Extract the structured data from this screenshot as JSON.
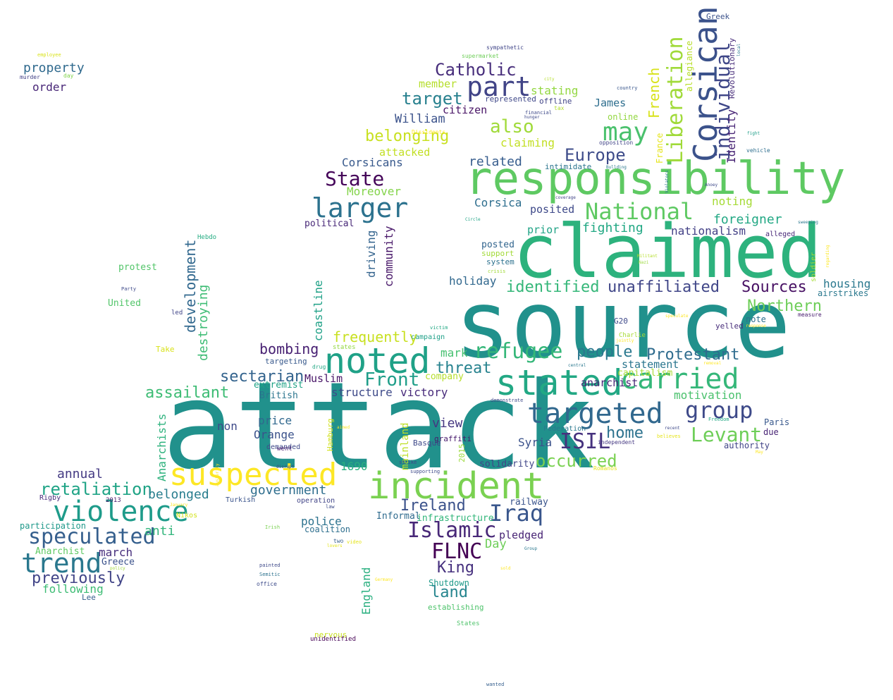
{
  "words": [
    {
      "text": "attack",
      "color": "#21918c"
    },
    {
      "text": "source",
      "color": "#21918c"
    },
    {
      "text": "claimed",
      "color": "#2db27d"
    },
    {
      "text": "responsibility",
      "color": "#5ec962"
    },
    {
      "text": "incident",
      "color": "#7ad151"
    },
    {
      "text": "noted",
      "color": "#1fa187"
    },
    {
      "text": "stated",
      "color": "#22a884"
    },
    {
      "text": "suspected",
      "color": "#fde725"
    },
    {
      "text": "Corsican",
      "color": "#3b528b"
    },
    {
      "text": "targeted",
      "color": "#31688e"
    },
    {
      "text": "carried",
      "color": "#35b779"
    },
    {
      "text": "violence",
      "color": "#1e9b8a"
    },
    {
      "text": "trend",
      "color": "#2a788e"
    },
    {
      "text": "larger",
      "color": "#2c728e"
    },
    {
      "text": "part",
      "color": "#414487"
    },
    {
      "text": "refugee",
      "color": "#35b779"
    },
    {
      "text": "group",
      "color": "#3e4a89"
    },
    {
      "text": "Islamic",
      "color": "#482878"
    },
    {
      "text": "FLNC",
      "color": "#440154"
    },
    {
      "text": "ISIL",
      "color": "#46327e"
    },
    {
      "text": "Iraq",
      "color": "#39568c"
    },
    {
      "text": "National",
      "color": "#5ec962"
    },
    {
      "text": "may",
      "color": "#4ac16d"
    },
    {
      "text": "Liberation",
      "color": "#a0da39"
    },
    {
      "text": "individual",
      "color": "#3f4788"
    },
    {
      "text": "speculated",
      "color": "#355f8d"
    },
    {
      "text": "retaliation",
      "color": "#20a486"
    },
    {
      "text": "Levant",
      "color": "#6ece58"
    },
    {
      "text": "Front",
      "color": "#1f9e89"
    },
    {
      "text": "Sources",
      "color": "#471063"
    },
    {
      "text": "Northern",
      "color": "#6ece58"
    },
    {
      "text": "Protestant",
      "color": "#2f6c8e"
    },
    {
      "text": "sectarian",
      "color": "#33638d"
    },
    {
      "text": "State",
      "color": "#450559"
    },
    {
      "text": "also",
      "color": "#a0da39"
    },
    {
      "text": "belonging",
      "color": "#c8e020"
    },
    {
      "text": "Catholic",
      "color": "#472d7b"
    },
    {
      "text": "target",
      "color": "#27808e"
    },
    {
      "text": "Europe",
      "color": "#3e4c8a"
    },
    {
      "text": "occurred",
      "color": "#7ad151"
    },
    {
      "text": "home",
      "color": "#2c728e"
    },
    {
      "text": "Ireland",
      "color": "#3b528b"
    },
    {
      "text": "land",
      "color": "#25858e"
    },
    {
      "text": "King",
      "color": "#46307e"
    },
    {
      "text": "people",
      "color": "#2a788e"
    },
    {
      "text": "threat",
      "color": "#26828e"
    },
    {
      "text": "identified",
      "color": "#35b779"
    },
    {
      "text": "unaffiliated",
      "color": "#404688"
    },
    {
      "text": "assailant",
      "color": "#3dbc74"
    },
    {
      "text": "frequently",
      "color": "#c8e020"
    },
    {
      "text": "bombing",
      "color": "#482173"
    },
    {
      "text": "government",
      "color": "#2e6e8e"
    },
    {
      "text": "belonged",
      "color": "#287d8e"
    },
    {
      "text": "previously",
      "color": "#414487"
    },
    {
      "text": "following",
      "color": "#3dbc74"
    },
    {
      "text": "march",
      "color": "#472f7d"
    },
    {
      "text": "annual",
      "color": "#443a83"
    },
    {
      "text": "anti",
      "color": "#31b57b"
    },
    {
      "text": "development",
      "color": "#31688e"
    },
    {
      "text": "destroying",
      "color": "#3dbc74"
    },
    {
      "text": "Anarchists",
      "color": "#2db27d"
    },
    {
      "text": "coastline",
      "color": "#1fa187"
    },
    {
      "text": "driving",
      "color": "#33638d"
    },
    {
      "text": "community",
      "color": "#481769"
    },
    {
      "text": "mainland",
      "color": "#bddf26"
    },
    {
      "text": "England",
      "color": "#29af7f"
    },
    {
      "text": "Moreover",
      "color": "#84d44b"
    },
    {
      "text": "Corsicans",
      "color": "#38598c"
    },
    {
      "text": "attacked",
      "color": "#c2df23"
    },
    {
      "text": "William",
      "color": "#3b528b"
    },
    {
      "text": "citizen",
      "color": "#471365"
    },
    {
      "text": "member",
      "color": "#b5de2b"
    },
    {
      "text": "related",
      "color": "#365c8d"
    },
    {
      "text": "claiming",
      "color": "#c2df23"
    },
    {
      "text": "stating",
      "color": "#93d741"
    },
    {
      "text": "James",
      "color": "#2e6e8e"
    },
    {
      "text": "French",
      "color": "#d8e219"
    },
    {
      "text": "Identity",
      "color": "#482475"
    },
    {
      "text": "Corsica",
      "color": "#2e6e8e"
    },
    {
      "text": "posited",
      "color": "#3e4989"
    },
    {
      "text": "noting",
      "color": "#a5db36"
    },
    {
      "text": "fighting",
      "color": "#22a884"
    },
    {
      "text": "foreigner",
      "color": "#22a884"
    },
    {
      "text": "nationalism",
      "color": "#424086"
    },
    {
      "text": "prior",
      "color": "#20a386"
    },
    {
      "text": "holiday",
      "color": "#31688e"
    },
    {
      "text": "housing",
      "color": "#2a788e"
    },
    {
      "text": "view",
      "color": "#453781"
    },
    {
      "text": "victory",
      "color": "#472a7a"
    },
    {
      "text": "structure",
      "color": "#3e4a89"
    },
    {
      "text": "Muslim",
      "color": "#481467"
    },
    {
      "text": "extremist",
      "color": "#20a386"
    },
    {
      "text": "British",
      "color": "#2b758e"
    },
    {
      "text": "price",
      "color": "#31688e"
    },
    {
      "text": "Orange",
      "color": "#3b528b"
    },
    {
      "text": "non",
      "color": "#3e4a89"
    },
    {
      "text": "mark",
      "color": "#46c06f"
    },
    {
      "text": "company",
      "color": "#b5de2b"
    },
    {
      "text": "motivation",
      "color": "#4ac16d"
    },
    {
      "text": "statement",
      "color": "#2a768e"
    },
    {
      "text": "anarchist",
      "color": "#482677"
    },
    {
      "text": "capitalism",
      "color": "#a8db34"
    },
    {
      "text": "Syria",
      "color": "#3b528b"
    },
    {
      "text": "solidarity",
      "color": "#404588"
    },
    {
      "text": "Day",
      "color": "#6ece58"
    },
    {
      "text": "pledged",
      "color": "#482475"
    },
    {
      "text": "1690",
      "color": "#29af7f"
    },
    {
      "text": "police",
      "color": "#2c728e"
    },
    {
      "text": "coalition",
      "color": "#2e6f8e"
    },
    {
      "text": "Informal",
      "color": "#2f6b8e"
    },
    {
      "text": "infrastructure",
      "color": "#32b67a"
    },
    {
      "text": "railway",
      "color": "#3a548c"
    },
    {
      "text": "Shutdown",
      "color": "#1f9a8a"
    },
    {
      "text": "establishing",
      "color": "#4ec36b"
    },
    {
      "text": "participation",
      "color": "#1f998a"
    },
    {
      "text": "Anarchist",
      "color": "#5ec962"
    },
    {
      "text": "Greece",
      "color": "#3b528b"
    },
    {
      "text": "Lee",
      "color": "#355f8d"
    },
    {
      "text": "property",
      "color": "#306a8e"
    },
    {
      "text": "order",
      "color": "#482677"
    },
    {
      "text": "protest",
      "color": "#52c569"
    },
    {
      "text": "United",
      "color": "#52c569"
    },
    {
      "text": "political",
      "color": "#482878"
    },
    {
      "text": "posted",
      "color": "#32658e"
    },
    {
      "text": "support",
      "color": "#a2da37"
    },
    {
      "text": "system",
      "color": "#2c718e"
    },
    {
      "text": "Paris",
      "color": "#38588c"
    },
    {
      "text": "due",
      "color": "#482475"
    },
    {
      "text": "authority",
      "color": "#414487"
    },
    {
      "text": "note",
      "color": "#2d708e"
    },
    {
      "text": "yelled",
      "color": "#472c7a"
    },
    {
      "text": "airstrikes",
      "color": "#2a788e"
    },
    {
      "text": "Revolutionary",
      "color": "#472c7a"
    },
    {
      "text": "allegiance",
      "color": "#b8de29"
    },
    {
      "text": "France",
      "color": "#e5e419"
    },
    {
      "text": "online",
      "color": "#93d741"
    },
    {
      "text": "intimidate",
      "color": "#2b748e"
    },
    {
      "text": "offline",
      "color": "#414487"
    },
    {
      "text": "represented",
      "color": "#3f4889"
    },
    {
      "text": "sympathetic",
      "color": "#404588"
    },
    {
      "text": "Greek",
      "color": "#3b528b"
    },
    {
      "text": "Hamburg",
      "color": "#d0e11c"
    },
    {
      "text": "2015",
      "color": "#9bd93c"
    },
    {
      "text": "Basque",
      "color": "#3e4989"
    },
    {
      "text": "demanded",
      "color": "#3e4989"
    },
    {
      "text": "graffiti",
      "color": "#481a6c"
    },
    {
      "text": "Turkish",
      "color": "#3a548c"
    },
    {
      "text": "operation",
      "color": "#414487"
    },
    {
      "text": "Nikos",
      "color": "#d2e21b"
    },
    {
      "text": "Rigby",
      "color": "#472a7a"
    },
    {
      "text": "2013",
      "color": "#481b6d"
    },
    {
      "text": "nervous",
      "color": "#c8e020"
    },
    {
      "text": "unidentified",
      "color": "#440154"
    },
    {
      "text": "campaign",
      "color": "#1fa088"
    },
    {
      "text": "drug",
      "color": "#22a884"
    },
    {
      "text": "targeting",
      "color": "#38598c"
    },
    {
      "text": "went",
      "color": "#481f70"
    },
    {
      "text": "Take",
      "color": "#d8e219"
    },
    {
      "text": "Hebdo",
      "color": "#25ac82"
    },
    {
      "text": "led",
      "color": "#404588"
    },
    {
      "text": "Party",
      "color": "#3e4989"
    },
    {
      "text": "G20",
      "color": "#3e4989"
    },
    {
      "text": "Charlie",
      "color": "#a8db34"
    },
    {
      "text": "Federation",
      "color": "#2a788e"
    },
    {
      "text": "independent",
      "color": "#453882"
    },
    {
      "text": "soldier",
      "color": "#a5db36"
    },
    {
      "text": "alleged",
      "color": "#482878"
    },
    {
      "text": "measure",
      "color": "#481d6f"
    },
    {
      "text": "vehicle",
      "color": "#2e6e8e"
    },
    {
      "text": "opposition",
      "color": "#414487"
    },
    {
      "text": "financial",
      "color": "#3e4989"
    },
    {
      "text": "country",
      "color": "#39568c"
    },
    {
      "text": "tax",
      "color": "#b2dd2d"
    },
    {
      "text": "supermarket",
      "color": "#6ece58"
    },
    {
      "text": "employee",
      "color": "#d8e219"
    },
    {
      "text": "day",
      "color": "#82d34c"
    },
    {
      "text": "murder",
      "color": "#424186"
    },
    {
      "text": "states",
      "color": "#93d741"
    },
    {
      "text": "States",
      "color": "#4ec36b"
    },
    {
      "text": "painted",
      "color": "#3e4989"
    },
    {
      "text": "Semitic",
      "color": "#2c728e"
    },
    {
      "text": "office",
      "color": "#3e4c8a"
    },
    {
      "text": "strike",
      "color": "#404688"
    },
    {
      "text": "supporting",
      "color": "#3e4a89"
    },
    {
      "text": "two",
      "color": "#355f8d"
    },
    {
      "text": "lovers",
      "color": "#e2e418"
    },
    {
      "text": "video",
      "color": "#e5e419"
    },
    {
      "text": "law",
      "color": "#3e4c8a"
    },
    {
      "text": "victim",
      "color": "#22a884"
    },
    {
      "text": "crisis",
      "color": "#a0da39"
    },
    {
      "text": "Irish",
      "color": "#7ad151"
    },
    {
      "text": "wanted",
      "color": "#355f8d"
    },
    {
      "text": "Dissidents",
      "color": "#fde725"
    },
    {
      "text": "Circle",
      "color": "#20a486"
    },
    {
      "text": "Nazi",
      "color": "#9bd93c"
    },
    {
      "text": "Militant",
      "color": "#b5de2b"
    },
    {
      "text": "speculate",
      "color": "#fde725"
    },
    {
      "text": "Romanos",
      "color": "#e5e419"
    },
    {
      "text": "believes",
      "color": "#e5e419"
    },
    {
      "text": "Freedom",
      "color": "#22a884"
    },
    {
      "text": "removal",
      "color": "#fde725"
    },
    {
      "text": "recent",
      "color": "#3e4989"
    },
    {
      "text": "May",
      "color": "#fde725"
    },
    {
      "text": "response",
      "color": "#fde725"
    },
    {
      "text": "fight",
      "color": "#1f9e89"
    },
    {
      "text": "demonstrate",
      "color": "#3e4989"
    },
    {
      "text": "jointly",
      "color": "#fde725"
    },
    {
      "text": "central",
      "color": "#2a788e"
    },
    {
      "text": "January",
      "color": "#fde725"
    },
    {
      "text": "austerity",
      "color": "#fde725"
    },
    {
      "text": "Group",
      "color": "#2a788e"
    },
    {
      "text": "coverage",
      "color": "#414487"
    },
    {
      "text": "Anoey",
      "color": "#3e4989"
    },
    {
      "text": "hunger",
      "color": "#3e4989"
    },
    {
      "text": "local",
      "color": "#2a788e"
    },
    {
      "text": "city",
      "color": "#b5de2b"
    },
    {
      "text": "disrupt",
      "color": "#414487"
    },
    {
      "text": "sold",
      "color": "#fde725"
    },
    {
      "text": "policy",
      "color": "#a0da39"
    },
    {
      "text": "Germany",
      "color": "#fde725"
    },
    {
      "text": "aimed",
      "color": "#fde725"
    },
    {
      "text": "Violators",
      "color": "#2a788e"
    },
    {
      "text": "Bullding",
      "color": "#2a788e"
    },
    {
      "text": "sweeping",
      "color": "#2a788e"
    },
    {
      "text": "regarding",
      "color": "#fde725"
    }
  ]
}
